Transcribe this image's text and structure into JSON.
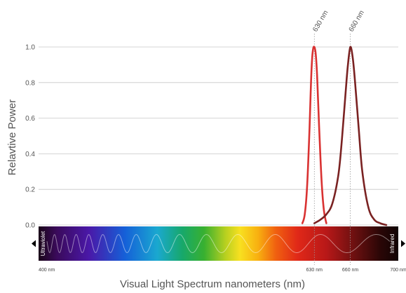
{
  "chart_data": {
    "type": "line",
    "title": "",
    "xlabel": "Visual Light Spectrum nanometers (nm)",
    "ylabel": "Relavtive Power",
    "xlim": [
      400,
      700
    ],
    "ylim": [
      0,
      1.0
    ],
    "y_ticks": [
      "0.0",
      "0.2",
      "0.4",
      "0.6",
      "0.8",
      "1.0"
    ],
    "x_ticks": [
      {
        "value": 400,
        "label": "400 nm"
      },
      {
        "value": 630,
        "label": "630 nm"
      },
      {
        "value": 660,
        "label": "660 nm"
      },
      {
        "value": 700,
        "label": "700 nm"
      }
    ],
    "grid": true,
    "series": [
      {
        "x": [
          620,
          622,
          624,
          626,
          627,
          628,
          629,
          630,
          631,
          632,
          633,
          634,
          636,
          638,
          640
        ],
        "y": [
          0.01,
          0.06,
          0.22,
          0.55,
          0.76,
          0.92,
          0.99,
          1.0,
          0.97,
          0.88,
          0.72,
          0.55,
          0.25,
          0.08,
          0.01
        ],
        "color": "#d93232"
      },
      {
        "x": [
          630,
          635,
          640,
          645,
          650,
          653,
          656,
          658,
          660,
          662,
          664,
          667,
          670,
          675,
          680,
          685,
          690
        ],
        "y": [
          0.01,
          0.03,
          0.06,
          0.12,
          0.28,
          0.48,
          0.74,
          0.9,
          1.0,
          0.94,
          0.8,
          0.54,
          0.3,
          0.1,
          0.03,
          0.01,
          0.0
        ],
        "color": "#7a2222"
      }
    ],
    "annotations": [
      {
        "x": 630,
        "label": "630 nm"
      },
      {
        "x": 660,
        "label": "660 nm"
      }
    ],
    "spectrum_band": {
      "left_label": "Ultraviolet",
      "right_label": "Infrared"
    }
  }
}
